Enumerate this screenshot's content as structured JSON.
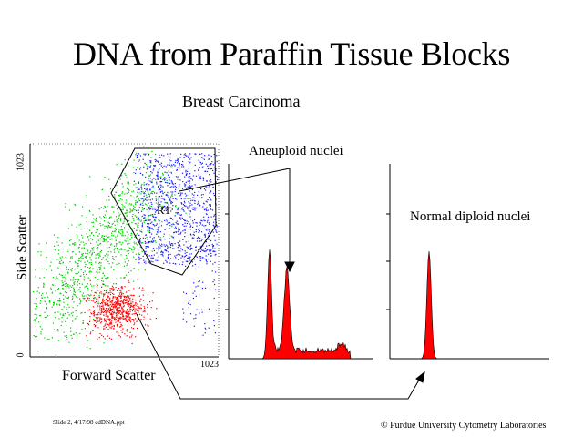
{
  "slide": {
    "title": "DNA from Paraffin Tissue Blocks",
    "subtitle": "Breast Carcinoma",
    "scatter": {
      "y_axis_label": "Side Scatter",
      "x_axis_label": "Forward Scatter",
      "y_tick_top": "1023",
      "y_tick_bottom": "0",
      "x_tick_right": "1023",
      "gate_label": "R1",
      "colors": {
        "gated": "#1a1aff",
        "other": "#00cc00",
        "debris": "#ff0000"
      }
    },
    "histogram_1": {
      "label": "Aneuploid nuclei",
      "fill": "#ff0000"
    },
    "histogram_2": {
      "label": "Normal diploid nuclei",
      "fill": "#ff0000"
    },
    "footer_left": "Slide 2, 4/17/98 cdDNA.ppt",
    "footer_right": "© Purdue University Cytometry Laboratories"
  }
}
